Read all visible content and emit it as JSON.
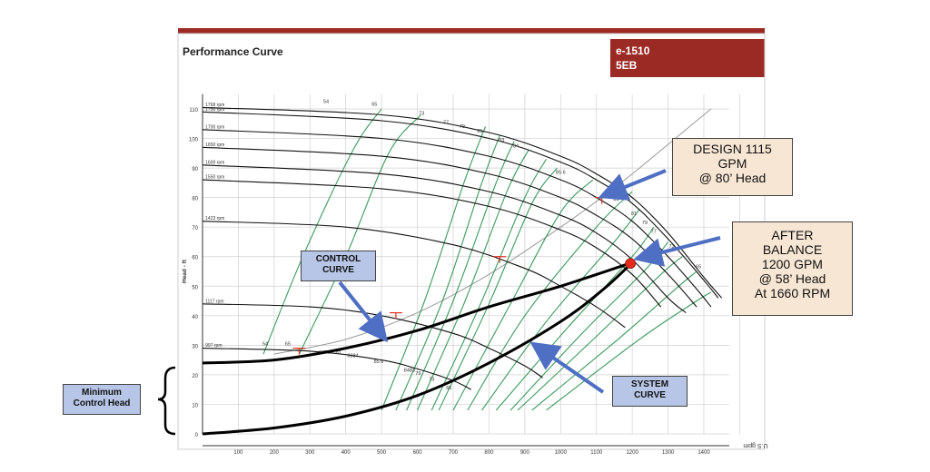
{
  "header": {
    "title": "Performance Curve",
    "model_line1": "e-1510",
    "model_line2": "5EB",
    "accent_color": "#9b2a25"
  },
  "chart_data": {
    "type": "line",
    "title": "Performance Curve",
    "xlabel": "",
    "ylabel": "Head - ft",
    "xunit_label": "U.S gpm",
    "xlim": [
      0,
      1550
    ],
    "ylim": [
      0,
      115
    ],
    "grid": true,
    "x_ticks": [
      "100",
      "200",
      "300",
      "400",
      "500",
      "600",
      "700",
      "800",
      "900",
      "1000",
      "1100",
      "1200",
      "1300",
      "1400"
    ],
    "y_ticks": [
      "0",
      "10",
      "20",
      "30",
      "40",
      "50",
      "60",
      "70",
      "80",
      "90",
      "100",
      "110"
    ],
    "speed_curves": [
      {
        "name": "1768 rpm",
        "points": [
          [
            0,
            110.5
          ],
          [
            500,
            108
          ],
          [
            800,
            102
          ],
          [
            1000,
            94
          ],
          [
            1100,
            88
          ],
          [
            1200,
            80
          ],
          [
            1300,
            68
          ],
          [
            1400,
            53
          ],
          [
            1450,
            46
          ]
        ]
      },
      {
        "name": "1750 rpm",
        "points": [
          [
            0,
            109
          ],
          [
            500,
            106
          ],
          [
            800,
            100
          ],
          [
            1000,
            92
          ],
          [
            1100,
            86
          ],
          [
            1200,
            78
          ],
          [
            1300,
            66
          ],
          [
            1400,
            52
          ],
          [
            1440,
            46
          ]
        ]
      },
      {
        "name": "1700 rpm",
        "points": [
          [
            0,
            103
          ],
          [
            500,
            100
          ],
          [
            800,
            94
          ],
          [
            1000,
            86
          ],
          [
            1100,
            80
          ],
          [
            1200,
            72
          ],
          [
            1300,
            60
          ],
          [
            1380,
            49
          ],
          [
            1420,
            43
          ]
        ]
      },
      {
        "name": "1650 rpm",
        "points": [
          [
            0,
            97
          ],
          [
            500,
            94
          ],
          [
            800,
            88
          ],
          [
            1000,
            80
          ],
          [
            1100,
            74
          ],
          [
            1200,
            66
          ],
          [
            1300,
            54
          ],
          [
            1380,
            43
          ]
        ]
      },
      {
        "name": "1600 rpm",
        "points": [
          [
            0,
            91
          ],
          [
            500,
            88
          ],
          [
            800,
            82
          ],
          [
            1000,
            74
          ],
          [
            1100,
            68
          ],
          [
            1200,
            59
          ],
          [
            1300,
            46
          ],
          [
            1350,
            41
          ]
        ]
      },
      {
        "name": "1550 rpm",
        "points": [
          [
            0,
            86
          ],
          [
            500,
            83
          ],
          [
            800,
            77
          ],
          [
            1000,
            69
          ],
          [
            1100,
            63
          ],
          [
            1200,
            54
          ],
          [
            1280,
            43
          ]
        ]
      },
      {
        "name": "1423 rpm",
        "points": [
          [
            0,
            72
          ],
          [
            400,
            70
          ],
          [
            700,
            64
          ],
          [
            900,
            56
          ],
          [
            1000,
            50
          ],
          [
            1100,
            43
          ],
          [
            1180,
            36
          ]
        ]
      },
      {
        "name": "1117 rpm",
        "points": [
          [
            0,
            44
          ],
          [
            300,
            43
          ],
          [
            500,
            40
          ],
          [
            700,
            34
          ],
          [
            800,
            29
          ],
          [
            900,
            23
          ],
          [
            950,
            19
          ]
        ]
      },
      {
        "name": "997 rpm",
        "points": [
          [
            0,
            29
          ],
          [
            300,
            28
          ],
          [
            500,
            25
          ],
          [
            600,
            22
          ],
          [
            700,
            18
          ],
          [
            750,
            15
          ]
        ]
      }
    ],
    "efficiency_lines": [
      {
        "name": "54",
        "points": [
          [
            170,
            27
          ],
          [
            280,
            60
          ],
          [
            420,
            96
          ],
          [
            500,
            110
          ]
        ]
      },
      {
        "name": "65",
        "points": [
          [
            270,
            27
          ],
          [
            400,
            60
          ],
          [
            520,
            95
          ],
          [
            610,
            108
          ]
        ]
      },
      {
        "name": "73",
        "points": [
          [
            500,
            8
          ],
          [
            620,
            45
          ],
          [
            730,
            85
          ],
          [
            790,
            104
          ]
        ]
      },
      {
        "name": "77",
        "points": [
          [
            540,
            8
          ],
          [
            670,
            45
          ],
          [
            780,
            85
          ],
          [
            830,
            101
          ]
        ]
      },
      {
        "name": "79",
        "points": [
          [
            570,
            8
          ],
          [
            700,
            45
          ],
          [
            820,
            85
          ],
          [
            870,
            99
          ]
        ]
      },
      {
        "name": "81",
        "points": [
          [
            600,
            8
          ],
          [
            730,
            44
          ],
          [
            850,
            82
          ],
          [
            910,
            96
          ]
        ]
      },
      {
        "name": "83",
        "points": [
          [
            640,
            8
          ],
          [
            780,
            45
          ],
          [
            900,
            80
          ],
          [
            960,
            93
          ]
        ]
      },
      {
        "name": "84",
        "points": [
          [
            660,
            8
          ],
          [
            800,
            44
          ],
          [
            920,
            78
          ],
          [
            990,
            90
          ]
        ]
      },
      {
        "name": "85.6",
        "points": [
          [
            700,
            8
          ],
          [
            860,
            44
          ],
          [
            1000,
            75
          ],
          [
            1090,
            86
          ]
        ]
      },
      {
        "name": "84",
        "points": [
          [
            740,
            8
          ],
          [
            900,
            40
          ],
          [
            1100,
            70
          ],
          [
            1200,
            82
          ]
        ]
      },
      {
        "name": "83",
        "points": [
          [
            780,
            8
          ],
          [
            960,
            38
          ],
          [
            1150,
            65
          ],
          [
            1220,
            76
          ]
        ]
      },
      {
        "name": "81",
        "points": [
          [
            820,
            8
          ],
          [
            1020,
            36
          ],
          [
            1200,
            60
          ],
          [
            1260,
            70
          ]
        ]
      },
      {
        "name": "79",
        "points": [
          [
            860,
            8
          ],
          [
            1060,
            34
          ],
          [
            1240,
            56
          ],
          [
            1300,
            65
          ]
        ]
      },
      {
        "name": "77",
        "points": [
          [
            880,
            8
          ],
          [
            1100,
            33
          ],
          [
            1280,
            54
          ],
          [
            1340,
            60
          ]
        ]
      },
      {
        "name": "73",
        "points": [
          [
            920,
            8
          ],
          [
            1160,
            32
          ],
          [
            1330,
            50
          ],
          [
            1380,
            55
          ]
        ]
      },
      {
        "name": "65",
        "points": [
          [
            960,
            8
          ],
          [
            1220,
            32
          ],
          [
            1380,
            45
          ],
          [
            1420,
            48
          ]
        ]
      }
    ],
    "bottom_eff_labels": [
      {
        "label": "54",
        "x": 175,
        "y": 30
      },
      {
        "label": "65",
        "x": 238,
        "y": 30
      },
      {
        "label": "7779",
        "x": 340,
        "y": 27
      },
      {
        "label": "81",
        "x": 380,
        "y": 27
      },
      {
        "label": "8384",
        "x": 420,
        "y": 26
      },
      {
        "label": "85.6",
        "x": 492,
        "y": 24
      },
      {
        "label": "8483",
        "x": 578,
        "y": 21
      },
      {
        "label": "79",
        "x": 602,
        "y": 20
      },
      {
        "label": "73",
        "x": 640,
        "y": 18
      },
      {
        "label": "65",
        "x": 688,
        "y": 15
      }
    ],
    "top_eff_labels": [
      {
        "label": "54",
        "x": 345,
        "y": 112
      },
      {
        "label": "65",
        "x": 480,
        "y": 111
      },
      {
        "label": "73",
        "x": 612,
        "y": 108
      },
      {
        "label": "77",
        "x": 680,
        "y": 105
      },
      {
        "label": "79",
        "x": 725,
        "y": 103.5
      },
      {
        "label": "81",
        "x": 775,
        "y": 102
      },
      {
        "label": "83",
        "x": 835,
        "y": 99
      },
      {
        "label": "84",
        "x": 875,
        "y": 97
      },
      {
        "label": "85.6",
        "x": 1000,
        "y": 88
      },
      {
        "label": "84",
        "x": 1140,
        "y": 82
      },
      {
        "label": "83",
        "x": 1155,
        "y": 79
      },
      {
        "label": "81",
        "x": 1205,
        "y": 74
      },
      {
        "label": "79",
        "x": 1235,
        "y": 71
      },
      {
        "label": "77",
        "x": 1260,
        "y": 68
      },
      {
        "label": "73",
        "x": 1310,
        "y": 63
      },
      {
        "label": "65",
        "x": 1385,
        "y": 56
      }
    ],
    "system_curve_gray": [
      [
        200,
        27
      ],
      [
        400,
        32
      ],
      [
        600,
        41
      ],
      [
        800,
        54
      ],
      [
        1000,
        70
      ],
      [
        1115,
        80
      ],
      [
        1200,
        88
      ],
      [
        1300,
        98
      ],
      [
        1420,
        110
      ]
    ],
    "control_curve": [
      [
        0,
        24
      ],
      [
        200,
        25
      ],
      [
        400,
        29
      ],
      [
        600,
        35
      ],
      [
        800,
        43
      ],
      [
        1000,
        50
      ],
      [
        1200,
        58
      ]
    ],
    "system_curve": [
      [
        0,
        0
      ],
      [
        200,
        2
      ],
      [
        400,
        6
      ],
      [
        600,
        13
      ],
      [
        800,
        24
      ],
      [
        1000,
        38
      ],
      [
        1120,
        49
      ],
      [
        1200,
        58
      ]
    ],
    "operating_points": [
      {
        "name": "design",
        "gpm": 1115,
        "head": 80
      },
      {
        "name": "after-balance",
        "gpm": 1200,
        "head": 58
      }
    ],
    "red_markers": [
      {
        "x": 830,
        "y": 60
      },
      {
        "x": 540,
        "y": 41
      },
      {
        "x": 270,
        "y": 29
      },
      {
        "x": 1115,
        "y": 80
      }
    ],
    "design_callout": [
      "DESIGN 1115",
      "GPM",
      "@ 80’ Head"
    ],
    "after_callout": [
      "AFTER",
      "BALANCE",
      "1200 GPM",
      "@ 58’ Head",
      "At 1660 RPM"
    ],
    "control_curve_label": [
      "CONTROL",
      "CURVE"
    ],
    "system_curve_label": [
      "SYSTEM",
      "CURVE"
    ],
    "min_head_label": [
      "Minimum",
      "Control Head"
    ],
    "colors": {
      "speed_curve": "#111111",
      "efficiency": "#3a9a5c",
      "arrow": "#4f6fc4",
      "marker_red": "#e03020",
      "point_red": "#e82a1c",
      "grid": "#d0d0d0",
      "system_gray": "#999999"
    }
  }
}
